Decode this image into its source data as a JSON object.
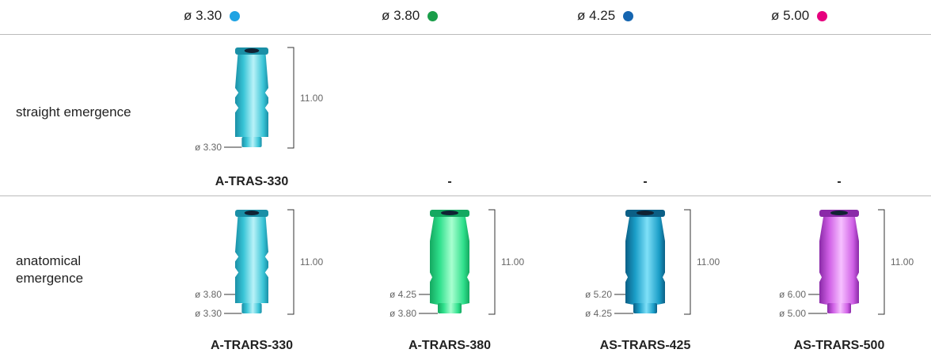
{
  "columns": [
    {
      "label": "ø 3.30",
      "color": "#1fa3e3"
    },
    {
      "label": "ø 3.80",
      "color": "#1a9e4a"
    },
    {
      "label": "ø 4.25",
      "color": "#1565b0"
    },
    {
      "label": "ø 5.00",
      "color": "#e6007e"
    }
  ],
  "rows": [
    {
      "label": "straight emergence",
      "cells": [
        {
          "height": "11.00",
          "diameters": [
            "ø 3.30"
          ],
          "code": "A-TRAS-330"
        },
        {
          "code": "-"
        },
        {
          "code": "-"
        },
        {
          "code": "-"
        }
      ]
    },
    {
      "label": "anatomical emergence",
      "cells": [
        {
          "height": "11.00",
          "diameters": [
            "ø 3.80",
            "ø 3.30"
          ],
          "code": "A-TRARS-330"
        },
        {
          "height": "11.00",
          "diameters": [
            "ø 4.25",
            "ø 3.80"
          ],
          "code": "A-TRARS-380"
        },
        {
          "height": "11.00",
          "diameters": [
            "ø 5.20",
            "ø 4.25"
          ],
          "code": "AS-TRARS-425"
        },
        {
          "height": "11.00",
          "diameters": [
            "ø 6.00",
            "ø 5.00"
          ],
          "code": "AS-TRARS-500"
        }
      ]
    }
  ]
}
